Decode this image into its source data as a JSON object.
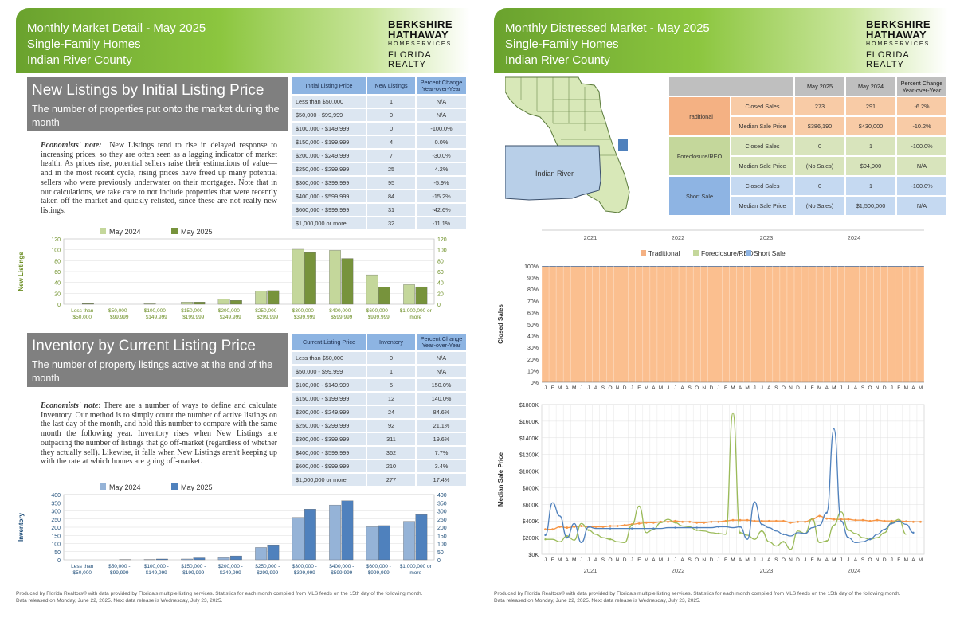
{
  "left": {
    "header": [
      "Monthly Market Detail - May 2025",
      "Single-Family Homes",
      "Indian River County"
    ],
    "logo": {
      "line1": "BERKSHIRE",
      "line2": "HATHAWAY",
      "line3": "HOMESERVICES",
      "line4": "FLORIDA REALTY"
    },
    "section1": {
      "title": "New Listings by Initial Listing Price",
      "subtitle": "The number of properties put onto the market during the month",
      "notes_label": "Economists' note:",
      "notes_text": "New Listings tend to rise in delayed response to increasing prices, so they are often seen as a lagging indicator of market health. As prices rise, potential sellers raise their estimations of value—and in the most recent cycle, rising prices have freed up many potential sellers who were previously underwater on their mortgages. Note that in our calculations, we take care to not include properties that were recently taken off the market and quickly relisted, since these are not really new listings.",
      "table": {
        "headers": [
          "Initial Listing Price",
          "New Listings",
          "Percent Change Year-over-Year"
        ],
        "rows": [
          [
            "Less than $50,000",
            "1",
            "N/A"
          ],
          [
            "$50,000 - $99,999",
            "0",
            "N/A"
          ],
          [
            "$100,000 - $149,999",
            "0",
            "-100.0%"
          ],
          [
            "$150,000 - $199,999",
            "4",
            "0.0%"
          ],
          [
            "$200,000 - $249,999",
            "7",
            "-30.0%"
          ],
          [
            "$250,000 - $299,999",
            "25",
            "4.2%"
          ],
          [
            "$300,000 - $399,999",
            "95",
            "-5.9%"
          ],
          [
            "$400,000 - $599,999",
            "84",
            "-15.2%"
          ],
          [
            "$600,000 - $999,999",
            "31",
            "-42.6%"
          ],
          [
            "$1,000,000 or more",
            "32",
            "-11.1%"
          ]
        ]
      }
    },
    "section2": {
      "title": "Inventory by Current Listing Price",
      "subtitle": "The number of property listings active at the end of the month",
      "notes_label": "Economists' note",
      "notes_text": ": There are a number of ways to define and calculate Inventory. Our method is to simply count the number of active listings on the last day of the month, and hold this number to compare with the same month the following year. Inventory rises when New Listings are outpacing the number of listings that go off-market (regardless of whether they actually sell). Likewise, it falls when New Listings aren't keeping up with the rate at which homes are going off-market.",
      "table": {
        "headers": [
          "Current Listing Price",
          "Inventory",
          "Percent Change Year-over-Year"
        ],
        "rows": [
          [
            "Less than $50,000",
            "0",
            "N/A"
          ],
          [
            "$50,000 - $99,999",
            "1",
            "N/A"
          ],
          [
            "$100,000 - $149,999",
            "5",
            "150.0%"
          ],
          [
            "$150,000 - $199,999",
            "12",
            "140.0%"
          ],
          [
            "$200,000 - $249,999",
            "24",
            "84.6%"
          ],
          [
            "$250,000 - $299,999",
            "92",
            "21.1%"
          ],
          [
            "$300,000 - $399,999",
            "311",
            "19.6%"
          ],
          [
            "$400,000 - $599,999",
            "362",
            "7.7%"
          ],
          [
            "$600,000 - $999,999",
            "210",
            "3.4%"
          ],
          [
            "$1,000,000 or more",
            "277",
            "17.4%"
          ]
        ]
      }
    },
    "footer": [
      "Produced by Florida Realtors® with data provided by Florida's multiple listing services. Statistics for each month compiled from MLS feeds on the 15th day of the following month.",
      "Data released on Monday, June 22, 2025. Next data release is Wednesday, July 23, 2025."
    ]
  },
  "right": {
    "header": [
      "Monthly Distressed Market - May 2025",
      "Single-Family Homes",
      "Indian River County"
    ],
    "map_label": "Indian River",
    "table": {
      "cols": [
        "May 2025",
        "May 2024",
        "Percent Change Year-over-Year"
      ],
      "groups": [
        {
          "name": "Traditional",
          "color": "#f8cba6",
          "hcolor": "#f4b183",
          "rows": [
            [
              "Closed Sales",
              "273",
              "291",
              "-6.2%"
            ],
            [
              "Median Sale Price",
              "$386,190",
              "$430,000",
              "-10.2%"
            ]
          ]
        },
        {
          "name": "Foreclosure/REO",
          "color": "#d8e4bc",
          "hcolor": "#c4d79b",
          "rows": [
            [
              "Closed Sales",
              "0",
              "1",
              "-100.0%"
            ],
            [
              "Median Sale Price",
              "(No Sales)",
              "$94,900",
              "N/A"
            ]
          ]
        },
        {
          "name": "Short Sale",
          "color": "#c5d9f1",
          "hcolor": "#8eb4e3",
          "rows": [
            [
              "Closed Sales",
              "0",
              "1",
              "-100.0%"
            ],
            [
              "Median Sale Price",
              "(No Sales)",
              "$1,500,000",
              "N/A"
            ]
          ]
        }
      ]
    },
    "years": [
      "2021",
      "2022",
      "2023",
      "2024"
    ],
    "legend": [
      "Traditional",
      "Foreclosure/REO",
      "Short Sale"
    ],
    "months": [
      "J",
      "F",
      "M",
      "A",
      "M",
      "J",
      "J",
      "A",
      "S",
      "O",
      "N",
      "D"
    ],
    "footer": [
      "Produced by Florida Realtors® with data provided by Florida's multiple listing services. Statistics for each month compiled from MLS feeds on the 15th day of the following month.",
      "Data released on Monday, June 22, 2025. Next data release is Wednesday, July 23, 2025."
    ]
  },
  "chart_data": [
    {
      "type": "bar",
      "ylabel": "New Listings",
      "ylim": [
        0,
        120
      ],
      "categories": [
        "Less than $50,000",
        "$50,000 - $99,999",
        "$100,000 - $149,999",
        "$150,000 - $199,999",
        "$200,000 - $249,999",
        "$250,000 - $299,999",
        "$300,000 - $399,999",
        "$400,000 - $599,999",
        "$600,000 - $999,999",
        "$1,000,000 or more"
      ],
      "series": [
        {
          "name": "May 2024",
          "values": [
            0,
            0,
            1,
            4,
            10,
            24,
            101,
            99,
            54,
            36
          ],
          "color": "#c4d79b"
        },
        {
          "name": "May 2025",
          "values": [
            1,
            0,
            0,
            4,
            7,
            25,
            95,
            84,
            31,
            32
          ],
          "color": "#77933c"
        }
      ],
      "yticks": [
        0,
        20,
        40,
        60,
        80,
        100,
        120
      ]
    },
    {
      "type": "bar",
      "ylabel": "Inventory",
      "ylim": [
        0,
        400
      ],
      "categories": [
        "Less than $50,000",
        "$50,000 - $99,999",
        "$100,000 - $149,999",
        "$150,000 - $199,999",
        "$200,000 - $249,999",
        "$250,000 - $299,999",
        "$300,000 - $399,999",
        "$400,000 - $599,999",
        "$600,000 - $999,999",
        "$1,000,000 or more"
      ],
      "series": [
        {
          "name": "May 2024",
          "values": [
            0,
            0,
            2,
            5,
            13,
            76,
            260,
            336,
            203,
            236
          ],
          "color": "#95b3d7"
        },
        {
          "name": "May 2025",
          "values": [
            0,
            1,
            5,
            12,
            24,
            92,
            311,
            362,
            210,
            277
          ],
          "color": "#4f81bd"
        }
      ],
      "yticks": [
        0,
        50,
        100,
        150,
        200,
        250,
        300,
        350,
        400
      ]
    },
    {
      "type": "area",
      "ylabel": "Closed Sales",
      "ylim": [
        0,
        100
      ],
      "yticks": [
        "0%",
        "10%",
        "20%",
        "30%",
        "40%",
        "50%",
        "60%",
        "70%",
        "80%",
        "90%",
        "100%"
      ],
      "traditional_share_pct": 99.5
    },
    {
      "type": "line",
      "ylabel": "Median Sale Price",
      "ylim": [
        0,
        1800
      ],
      "yticks": [
        "$0K",
        "$200K",
        "$400K",
        "$600K",
        "$800K",
        "$1000K",
        "$1200K",
        "$1400K",
        "$1600K",
        "$1800K"
      ],
      "series": [
        {
          "name": "Traditional",
          "color": "#f79646",
          "values": [
            300,
            300,
            330,
            320,
            330,
            340,
            330,
            330,
            330,
            340,
            340,
            350,
            360,
            370,
            380,
            380,
            390,
            390,
            400,
            390,
            390,
            380,
            380,
            390,
            390,
            400,
            410,
            410,
            410,
            400,
            400,
            400,
            400,
            400,
            380,
            390,
            390,
            420,
            460,
            430,
            420,
            420,
            420,
            410,
            410,
            400,
            410,
            400,
            400,
            400,
            395,
            390,
            390
          ]
        },
        {
          "name": "Foreclosure/REO",
          "color": "#9bbb59",
          "values": [
            180,
            180,
            150,
            220,
            170,
            370,
            290,
            240,
            200,
            180,
            150,
            140,
            350,
            580,
            260,
            300,
            380,
            420,
            380,
            340,
            330,
            290,
            280,
            260,
            250,
            240,
            1700,
            260,
            230,
            180,
            280,
            150,
            100,
            150,
            60,
            280,
            250,
            430,
            140,
            160,
            350,
            510,
            290,
            250,
            200,
            180,
            200,
            260,
            380,
            420,
            240
          ]
        },
        {
          "name": "Short Sale",
          "color": "#4f81bd",
          "values": [
            230,
            620,
            460,
            200,
            370,
            140,
            330,
            310,
            310,
            310,
            310,
            310,
            310,
            310,
            310,
            310,
            310,
            320,
            320,
            320,
            320,
            320,
            320,
            320,
            330,
            330,
            320,
            330,
            180,
            630,
            360,
            320,
            280,
            240,
            220,
            260,
            250,
            320,
            350,
            500,
            1510,
            400,
            200,
            140,
            150,
            180,
            240,
            300,
            370,
            400,
            360,
            260
          ]
        }
      ]
    }
  ]
}
